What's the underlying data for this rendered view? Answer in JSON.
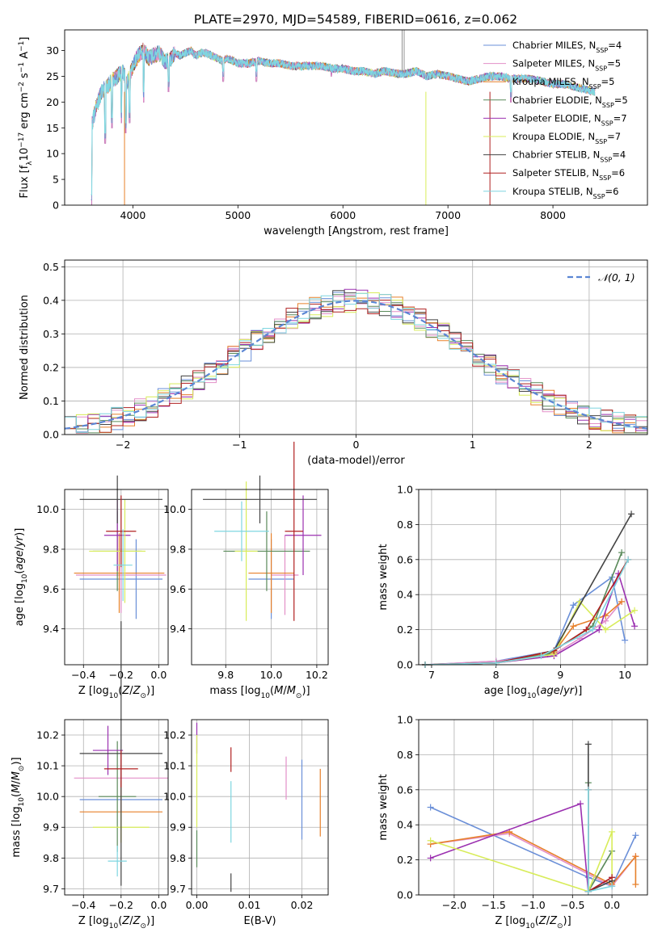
{
  "figure_title": "PLATE=2970, MJD=54589, FIBERID=0616, z=0.062",
  "colors": {
    "chabrier_miles": "#6a8fd8",
    "salpeter_miles": "#e38fc8",
    "kroupa_miles": "#e7802a",
    "chabrier_elodie": "#5a8a5a",
    "salpeter_elodie": "#9b30b0",
    "kroupa_elodie": "#d8ec5a",
    "chabrier_stelib": "#444444",
    "salpeter_stelib": "#b02020",
    "kroupa_stelib": "#7fd6e0"
  },
  "chart_data": [
    {
      "id": "spectrum",
      "type": "line",
      "title": "PLATE=2970, MJD=54589, FIBERID=0616, z=0.062",
      "xlabel": "wavelength [Angstrom, rest frame]",
      "ylabel": "Flux [f_λ10^-17 erg cm^-2 s^-1 A^-1]",
      "xlim": [
        3350,
        8900
      ],
      "ylim": [
        0,
        34
      ],
      "xticks": [
        4000,
        5000,
        6000,
        7000,
        8000
      ],
      "yticks": [
        0,
        5,
        10,
        15,
        20,
        25,
        30
      ],
      "grid": false,
      "legend_position": "top-right",
      "legend": [
        {
          "name": "Chabrier MILES, N_SSP=4",
          "text": "Chabrier MILES, N",
          "sub": "SSP",
          "n": "=4",
          "color_key": "chabrier_miles"
        },
        {
          "name": "Salpeter MILES, N_SSP=5",
          "text": "Salpeter MILES, N",
          "sub": "SSP",
          "n": "=5",
          "color_key": "salpeter_miles"
        },
        {
          "name": "Kroupa MILES, N_SSP=5",
          "text": "Kroupa MILES, N",
          "sub": "SSP",
          "n": "=5",
          "color_key": "kroupa_miles"
        },
        {
          "name": "Chabrier ELODIE, N_SSP=5",
          "text": "Chabrier ELODIE, N",
          "sub": "SSP",
          "n": "=5",
          "color_key": "chabrier_elodie"
        },
        {
          "name": "Salpeter ELODIE, N_SSP=7",
          "text": "Salpeter ELODIE, N",
          "sub": "SSP",
          "n": "=7",
          "color_key": "salpeter_elodie"
        },
        {
          "name": "Kroupa ELODIE, N_SSP=7",
          "text": "Kroupa ELODIE, N",
          "sub": "SSP",
          "n": "=7",
          "color_key": "kroupa_elodie"
        },
        {
          "name": "Chabrier STELIB, N_SSP=4",
          "text": "Chabrier STELIB, N",
          "sub": "SSP",
          "n": "=4",
          "color_key": "chabrier_stelib"
        },
        {
          "name": "Salpeter STELIB, N_SSP=6",
          "text": "Salpeter STELIB, N",
          "sub": "SSP",
          "n": "=6",
          "color_key": "salpeter_stelib"
        },
        {
          "name": "Kroupa STELIB, N_SSP=6",
          "text": "Kroupa STELIB, N",
          "sub": "SSP",
          "n": "=6",
          "color_key": "kroupa_stelib"
        }
      ],
      "x": [
        3600,
        3650,
        3700,
        3750,
        3800,
        3850,
        3900,
        3950,
        4000,
        4050,
        4100,
        4150,
        4200,
        4250,
        4300,
        4350,
        4400,
        4450,
        4500,
        4550,
        4600,
        4650,
        4700,
        4750,
        4800,
        4850,
        4900,
        4950,
        5000,
        5100,
        5200,
        5300,
        5400,
        5500,
        5600,
        5700,
        5800,
        5900,
        6000,
        6100,
        6200,
        6300,
        6400,
        6500,
        6600,
        6700,
        6800,
        6900,
        7000,
        7100,
        7200,
        7300,
        7400,
        7500,
        7600,
        7700,
        7800,
        7900,
        8000,
        8100,
        8200,
        8300,
        8400
      ],
      "flux": [
        15,
        19,
        22,
        23,
        24,
        25,
        26,
        24,
        27,
        29,
        30,
        28.5,
        29,
        29.5,
        28,
        28,
        29.5,
        29,
        29.5,
        30,
        29,
        29.5,
        29.5,
        29,
        28.5,
        28,
        28.5,
        28,
        27.5,
        27.5,
        28,
        27.5,
        27.5,
        27,
        27,
        27,
        27,
        26.5,
        26.5,
        26,
        26,
        25.5,
        26,
        25.5,
        25.5,
        26,
        25,
        25.5,
        25,
        24.5,
        24,
        24.5,
        25,
        25,
        24.5,
        24.5,
        24.5,
        24,
        23.5,
        23.5,
        23,
        22.5,
        22
      ],
      "absorption_lines": [
        {
          "x": 3605,
          "y": 0
        },
        {
          "x": 3735,
          "y": 12
        },
        {
          "x": 3800,
          "y": 15
        },
        {
          "x": 3890,
          "y": 16
        },
        {
          "x": 3933,
          "y": 14
        },
        {
          "x": 3968,
          "y": 16
        },
        {
          "x": 4102,
          "y": 20
        },
        {
          "x": 4340,
          "y": 22
        },
        {
          "x": 4861,
          "y": 24
        },
        {
          "x": 5175,
          "y": 24
        },
        {
          "x": 5890,
          "y": 25
        },
        {
          "x": 7600,
          "y": 20
        }
      ],
      "emission_lines": [
        {
          "x": 6563,
          "y": 34
        },
        {
          "x": 6583,
          "y": 34
        }
      ],
      "dropouts": [
        {
          "x": 3920,
          "color_key": "kroupa_miles"
        },
        {
          "x": 6790,
          "color_key": "kroupa_elodie"
        },
        {
          "x": 7400,
          "color_key": "salpeter_stelib"
        }
      ]
    },
    {
      "id": "residuals",
      "type": "line",
      "xlabel": "(data-model)/error",
      "ylabel": "Normed distribution",
      "xlim": [
        -2.5,
        2.5
      ],
      "ylim": [
        0,
        0.52
      ],
      "xticks": [
        -2,
        -1,
        0,
        1,
        2
      ],
      "yticks": [
        0.0,
        0.1,
        0.2,
        0.3,
        0.4,
        0.5
      ],
      "grid": true,
      "legend_position": "top-right",
      "gauss_label": "𝒩(0, 1)",
      "gauss_color": "#5b86d4",
      "bin_width": 0.1
    },
    {
      "id": "age_vs_z",
      "type": "scatter",
      "xlabel": "Z [log10(Z/Z⊙)]",
      "ylabel": "age  [log10(age/yr)]",
      "xlim": [
        -0.5,
        0.05
      ],
      "ylim": [
        9.22,
        10.1
      ],
      "xticks": [
        -0.4,
        -0.2,
        0.0
      ],
      "yticks": [
        9.4,
        9.6,
        9.8,
        10.0
      ],
      "grid": true,
      "points": [
        {
          "x": -0.2,
          "y": 9.65,
          "xerr": 0.22,
          "yerr": 0.2,
          "color_key": "chabrier_miles",
          "xm": -0.12
        },
        {
          "x": -0.2,
          "y": 9.67,
          "xerr": 0.24,
          "yerr": 0.19,
          "color_key": "salpeter_miles"
        },
        {
          "x": -0.21,
          "y": 9.68,
          "xerr": 0.24,
          "yerr": 0.2,
          "color_key": "kroupa_miles"
        },
        {
          "x": -0.22,
          "y": 9.79,
          "xerr": 0.13,
          "yerr": 0.2,
          "color_key": "chabrier_elodie"
        },
        {
          "x": -0.22,
          "y": 9.87,
          "xerr": 0.07,
          "yerr": 0.18,
          "color_key": "salpeter_elodie"
        },
        {
          "x": -0.22,
          "y": 9.79,
          "xerr": 0.15,
          "yerr": 0.26,
          "color_key": "kroupa_elodie",
          "xm": -0.18
        },
        {
          "x": -0.2,
          "y": 10.05,
          "xerr": 0.22,
          "yerr": 0.12,
          "color_key": "chabrier_stelib",
          "xm": -0.22
        },
        {
          "x": -0.2,
          "y": 9.89,
          "xerr": 0.08,
          "yerr": 0.18,
          "color_key": "salpeter_stelib",
          "xm": -0.2
        },
        {
          "x": -0.19,
          "y": 9.72,
          "xerr": 0.05,
          "yerr": 0.18,
          "color_key": "kroupa_stelib"
        }
      ]
    },
    {
      "id": "age_vs_mass",
      "type": "scatter",
      "xlabel": "mass [log10(M/M⊙)]",
      "xlim": [
        9.65,
        10.25
      ],
      "ylim": [
        9.22,
        10.1
      ],
      "xticks": [
        9.8,
        10.0,
        10.2
      ],
      "yticks": [
        9.4,
        9.6,
        9.8,
        10.0
      ],
      "grid": true,
      "points": [
        {
          "x": 10.0,
          "y": 9.65,
          "xerr": 0.1,
          "yerr": 0.2,
          "color_key": "chabrier_miles"
        },
        {
          "x": 10.06,
          "y": 9.67,
          "xerr": 0.06,
          "yerr": 0.2,
          "color_key": "salpeter_miles"
        },
        {
          "x": 10.0,
          "y": 9.68,
          "xerr": 0.1,
          "yerr": 0.2,
          "color_key": "kroupa_miles"
        },
        {
          "x": 9.98,
          "y": 9.79,
          "xerr": 0.19,
          "yerr": 0.2,
          "color_key": "chabrier_elodie"
        },
        {
          "x": 10.14,
          "y": 9.87,
          "xerr": 0.08,
          "yerr": 0.2,
          "color_key": "salpeter_elodie"
        },
        {
          "x": 9.89,
          "y": 9.79,
          "xerr": 0.05,
          "yerr": 0.35,
          "color_key": "kroupa_elodie"
        },
        {
          "x": 9.95,
          "y": 10.05,
          "xerr": 0.25,
          "yerr": 0.12,
          "color_key": "chabrier_stelib"
        },
        {
          "x": 10.1,
          "y": 9.89,
          "xerr": 0.04,
          "yerr": 0.45,
          "color_key": "salpeter_stelib"
        },
        {
          "x": 9.87,
          "y": 9.89,
          "xerr": 0.12,
          "yerr": 0.15,
          "color_key": "kroupa_stelib"
        }
      ]
    },
    {
      "id": "mass_weight_vs_age",
      "type": "line",
      "xlabel": "age  [log10(age/yr)]",
      "ylabel": "mass weight",
      "xlim": [
        6.8,
        10.35
      ],
      "ylim": [
        0,
        1.0
      ],
      "xticks": [
        7,
        8,
        9,
        10
      ],
      "yticks": [
        0.0,
        0.2,
        0.4,
        0.6,
        0.8,
        1.0
      ],
      "grid": true,
      "series": [
        {
          "color_key": "chabrier_miles",
          "x": [
            6.9,
            8.0,
            8.9,
            9.2,
            9.8,
            10.0
          ],
          "y": [
            0.0,
            0.02,
            0.08,
            0.34,
            0.5,
            0.14
          ]
        },
        {
          "color_key": "salpeter_miles",
          "x": [
            6.9,
            8.0,
            8.9,
            9.3,
            9.7,
            9.95
          ],
          "y": [
            0.0,
            0.02,
            0.06,
            0.15,
            0.25,
            0.36
          ]
        },
        {
          "color_key": "kroupa_miles",
          "x": [
            6.9,
            8.0,
            8.9,
            9.2,
            9.7,
            9.95
          ],
          "y": [
            0.0,
            0.01,
            0.07,
            0.22,
            0.28,
            0.36
          ]
        },
        {
          "color_key": "chabrier_elodie",
          "x": [
            6.9,
            8.0,
            8.8,
            9.5,
            9.95
          ],
          "y": [
            0.0,
            0.01,
            0.06,
            0.22,
            0.64
          ]
        },
        {
          "color_key": "salpeter_elodie",
          "x": [
            6.9,
            8.0,
            8.9,
            9.6,
            9.9,
            10.15
          ],
          "y": [
            0.0,
            0.01,
            0.05,
            0.2,
            0.52,
            0.22
          ]
        },
        {
          "color_key": "kroupa_elodie",
          "x": [
            6.9,
            8.0,
            8.9,
            9.3,
            9.7,
            10.15
          ],
          "y": [
            0.0,
            0.01,
            0.06,
            0.36,
            0.2,
            0.31
          ]
        },
        {
          "color_key": "chabrier_stelib",
          "x": [
            6.9,
            8.0,
            8.9,
            10.1
          ],
          "y": [
            0.0,
            0.01,
            0.08,
            0.86
          ]
        },
        {
          "color_key": "salpeter_stelib",
          "x": [
            6.9,
            8.0,
            8.9,
            9.4,
            10.05
          ],
          "y": [
            0.0,
            0.01,
            0.08,
            0.2,
            0.6
          ]
        },
        {
          "color_key": "kroupa_stelib",
          "x": [
            6.9,
            8.0,
            8.7,
            9.5,
            10.05
          ],
          "y": [
            0.0,
            0.01,
            0.05,
            0.2,
            0.6
          ]
        }
      ]
    },
    {
      "id": "mass_vs_z",
      "type": "scatter",
      "xlabel": "Z [log10(Z/Z⊙)]",
      "ylabel": "mass [log10(M/M⊙)]",
      "xlim": [
        -0.5,
        0.05
      ],
      "ylim": [
        9.68,
        10.25
      ],
      "xticks": [
        -0.4,
        -0.2,
        0.0
      ],
      "yticks": [
        9.7,
        9.8,
        9.9,
        10.0,
        10.1,
        10.2
      ],
      "grid": true,
      "points": [
        {
          "x": -0.2,
          "y": 9.99,
          "xerr": 0.22,
          "yerr": 0.1,
          "color_key": "chabrier_miles"
        },
        {
          "x": -0.2,
          "y": 10.06,
          "xerr": 0.25,
          "yerr": 0.06,
          "color_key": "salpeter_miles"
        },
        {
          "x": -0.2,
          "y": 9.95,
          "xerr": 0.22,
          "yerr": 0.1,
          "color_key": "kroupa_miles"
        },
        {
          "x": -0.22,
          "y": 10.0,
          "xerr": 0.1,
          "yerr": 0.18,
          "color_key": "chabrier_elodie"
        },
        {
          "x": -0.27,
          "y": 10.15,
          "xerr": 0.08,
          "yerr": 0.08,
          "color_key": "salpeter_elodie"
        },
        {
          "x": -0.2,
          "y": 9.9,
          "xerr": 0.15,
          "yerr": 0.05,
          "color_key": "kroupa_elodie"
        },
        {
          "x": -0.2,
          "y": 10.14,
          "xerr": 0.22,
          "yerr": 0.43,
          "color_key": "chabrier_stelib"
        },
        {
          "x": -0.2,
          "y": 10.09,
          "xerr": 0.09,
          "yerr": 0.06,
          "color_key": "salpeter_stelib"
        },
        {
          "x": -0.22,
          "y": 9.79,
          "xerr": 0.05,
          "yerr": 0.05,
          "color_key": "kroupa_stelib"
        }
      ]
    },
    {
      "id": "mass_vs_ebv",
      "type": "scatter",
      "xlabel": "E(B-V)",
      "xlim": [
        -0.001,
        0.025
      ],
      "ylim": [
        9.68,
        10.25
      ],
      "xticks": [
        0.0,
        0.01,
        0.02
      ],
      "yticks": [
        9.7,
        9.8,
        9.9,
        10.0,
        10.1,
        10.2
      ],
      "grid": true,
      "points": [
        {
          "x": 0.02,
          "y": 9.99,
          "yerr": 0.13,
          "color_key": "chabrier_miles"
        },
        {
          "x": 0.017,
          "y": 10.06,
          "yerr": 0.07,
          "color_key": "salpeter_miles"
        },
        {
          "x": 0.0235,
          "y": 9.98,
          "yerr": 0.11,
          "color_key": "kroupa_miles"
        },
        {
          "x": 0.0,
          "y": 9.83,
          "yerr": 0.06,
          "color_key": "chabrier_elodie"
        },
        {
          "x": 0.0,
          "y": 10.19,
          "yerr": 0.05,
          "color_key": "salpeter_elodie"
        },
        {
          "x": 0.0,
          "y": 10.05,
          "yerr": 0.15,
          "color_key": "kroupa_elodie"
        },
        {
          "x": 0.0065,
          "y": 9.72,
          "yerr": 0.03,
          "color_key": "chabrier_stelib"
        },
        {
          "x": 0.0065,
          "y": 10.12,
          "yerr": 0.04,
          "color_key": "salpeter_stelib"
        },
        {
          "x": 0.0065,
          "y": 9.95,
          "yerr": 0.1,
          "color_key": "kroupa_stelib"
        }
      ]
    },
    {
      "id": "mass_weight_vs_z",
      "type": "line",
      "xlabel": "Z [log10(Z/Z⊙)]",
      "ylabel": "mass weight",
      "xlim": [
        -2.45,
        0.45
      ],
      "ylim": [
        0,
        1.0
      ],
      "xticks": [
        -2.0,
        -1.5,
        -1.0,
        -0.5,
        0.0
      ],
      "yticks": [
        0.0,
        0.2,
        0.4,
        0.6,
        0.8,
        1.0
      ],
      "grid": true,
      "series": [
        {
          "color_key": "chabrier_miles",
          "x": [
            -2.3,
            -0.3,
            0.0,
            0.3
          ],
          "y": [
            0.5,
            0.1,
            0.05,
            0.34
          ]
        },
        {
          "color_key": "salpeter_miles",
          "x": [
            -2.3,
            -1.3,
            0.0,
            0.3
          ],
          "y": [
            0.29,
            0.35,
            0.05,
            0.22
          ]
        },
        {
          "color_key": "kroupa_miles",
          "x": [
            -2.3,
            -1.3,
            0.0,
            0.3,
            0.3
          ],
          "y": [
            0.29,
            0.36,
            0.06,
            0.22,
            0.06
          ]
        },
        {
          "color_key": "chabrier_elodie",
          "x": [
            -0.3,
            -0.3,
            0.0
          ],
          "y": [
            0.64,
            0.02,
            0.25
          ]
        },
        {
          "color_key": "salpeter_elodie",
          "x": [
            -2.3,
            -0.4,
            -0.3,
            0.0
          ],
          "y": [
            0.21,
            0.52,
            0.02,
            0.1
          ]
        },
        {
          "color_key": "kroupa_elodie",
          "x": [
            -2.3,
            -0.3,
            0.0,
            0.0
          ],
          "y": [
            0.31,
            0.02,
            0.36,
            0.08
          ]
        },
        {
          "color_key": "chabrier_stelib",
          "x": [
            -0.3,
            -0.3,
            0.0
          ],
          "y": [
            0.86,
            0.02,
            0.08
          ]
        },
        {
          "color_key": "salpeter_stelib",
          "x": [
            -0.3,
            -0.3,
            0.0
          ],
          "y": [
            0.6,
            0.02,
            0.1
          ]
        },
        {
          "color_key": "kroupa_stelib",
          "x": [
            -0.3,
            -0.3,
            0.0
          ],
          "y": [
            0.6,
            0.02,
            0.05
          ]
        }
      ]
    }
  ]
}
